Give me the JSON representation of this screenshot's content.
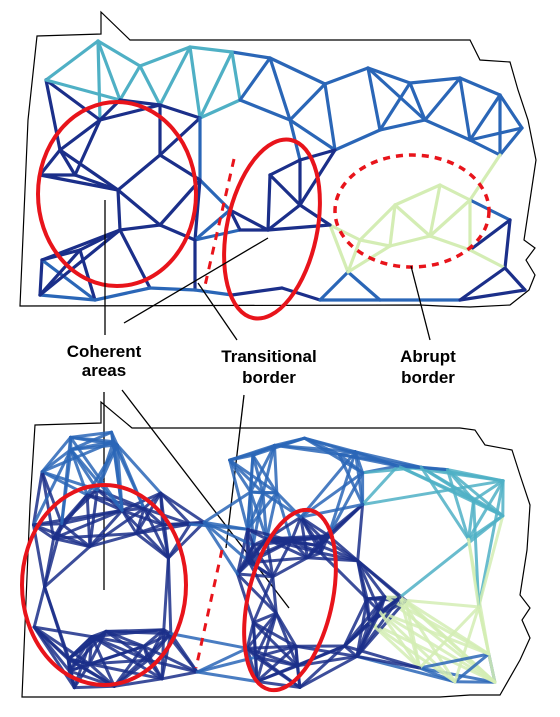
{
  "labels": {
    "coherent_line1": "Coherent",
    "coherent_line2": "areas",
    "transitional_line1": "Transitional",
    "transitional_line2": "border",
    "abrupt_line1": "Abrupt",
    "abrupt_line2": "border"
  },
  "colors": {
    "outline": "#000000",
    "annotation_red": "#e8141b",
    "edge_dark": "#1b2f8a",
    "edge_blue": "#2a66b7",
    "edge_teal": "#4fb0c5",
    "edge_pale": "#d4edb4"
  },
  "panels": [
    "top-sparse-network",
    "bottom-dense-network"
  ]
}
